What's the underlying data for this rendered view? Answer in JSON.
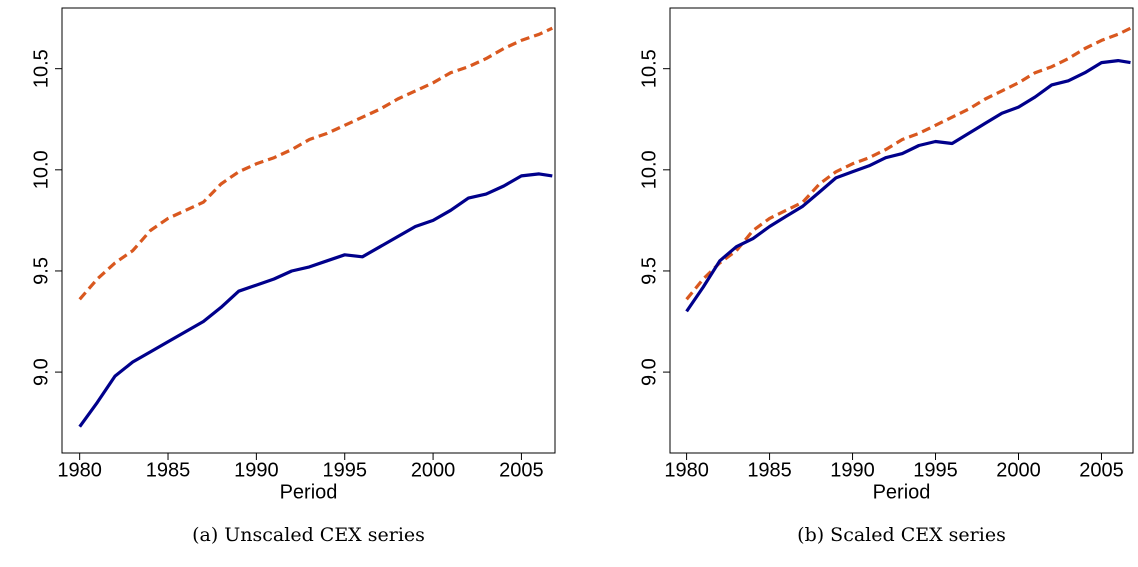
{
  "chart_data": [
    {
      "type": "line",
      "caption": "(a) Unscaled CEX series",
      "x_label": "Period",
      "x": [
        1980,
        1981,
        1982,
        1983,
        1984,
        1985,
        1986,
        1987,
        1988,
        1989,
        1990,
        1991,
        1992,
        1993,
        1994,
        1995,
        1996,
        1997,
        1998,
        1999,
        2000,
        2001,
        2002,
        2003,
        2004,
        2005,
        2006,
        2006.75
      ],
      "series": [
        {
          "color": "#d9581f",
          "dashed": true,
          "values": [
            9.36,
            9.46,
            9.54,
            9.6,
            9.7,
            9.76,
            9.8,
            9.84,
            9.93,
            9.99,
            10.03,
            10.06,
            10.1,
            10.15,
            10.18,
            10.22,
            10.26,
            10.3,
            10.35,
            10.39,
            10.43,
            10.48,
            10.51,
            10.55,
            10.6,
            10.64,
            10.67,
            10.7
          ]
        },
        {
          "color": "#00008b",
          "dashed": false,
          "values": [
            8.73,
            8.85,
            8.98,
            9.05,
            9.1,
            9.15,
            9.2,
            9.25,
            9.32,
            9.4,
            9.43,
            9.46,
            9.5,
            9.52,
            9.55,
            9.58,
            9.57,
            9.62,
            9.67,
            9.72,
            9.75,
            9.8,
            9.86,
            9.88,
            9.92,
            9.97,
            9.98,
            9.97
          ]
        }
      ],
      "xlim": [
        1979,
        2006.9
      ],
      "xticks": [
        1980,
        1985,
        1990,
        1995,
        2000,
        2005
      ],
      "ylim": [
        8.6,
        10.8
      ],
      "yticks": [
        {
          "value": 9.0,
          "label": "9.0"
        },
        {
          "value": 9.5,
          "label": "9.5"
        },
        {
          "value": 10.0,
          "label": "10.0"
        },
        {
          "value": 10.5,
          "label": "10.5"
        }
      ]
    },
    {
      "type": "line",
      "caption": "(b) Scaled CEX series",
      "x_label": "Period",
      "x": [
        1980,
        1981,
        1982,
        1983,
        1984,
        1985,
        1986,
        1987,
        1988,
        1989,
        1990,
        1991,
        1992,
        1993,
        1994,
        1995,
        1996,
        1997,
        1998,
        1999,
        2000,
        2001,
        2002,
        2003,
        2004,
        2005,
        2006,
        2006.75
      ],
      "series": [
        {
          "color": "#d9581f",
          "dashed": true,
          "values": [
            9.36,
            9.46,
            9.54,
            9.6,
            9.7,
            9.76,
            9.8,
            9.84,
            9.93,
            9.99,
            10.03,
            10.06,
            10.1,
            10.15,
            10.18,
            10.22,
            10.26,
            10.3,
            10.35,
            10.39,
            10.43,
            10.48,
            10.51,
            10.55,
            10.6,
            10.64,
            10.67,
            10.7
          ]
        },
        {
          "color": "#00008b",
          "dashed": false,
          "values": [
            9.3,
            9.42,
            9.55,
            9.62,
            9.66,
            9.72,
            9.77,
            9.82,
            9.89,
            9.96,
            9.99,
            10.02,
            10.06,
            10.08,
            10.12,
            10.14,
            10.13,
            10.18,
            10.23,
            10.28,
            10.31,
            10.36,
            10.42,
            10.44,
            10.48,
            10.53,
            10.54,
            10.53
          ]
        }
      ],
      "xlim": [
        1979,
        2006.9
      ],
      "xticks": [
        1980,
        1985,
        1990,
        1995,
        2000,
        2005
      ],
      "ylim": [
        8.6,
        10.8
      ],
      "yticks": [
        {
          "value": 9.0,
          "label": "9.0"
        },
        {
          "value": 9.5,
          "label": "9.5"
        },
        {
          "value": 10.0,
          "label": "10.0"
        },
        {
          "value": 10.5,
          "label": "10.5"
        }
      ]
    }
  ]
}
